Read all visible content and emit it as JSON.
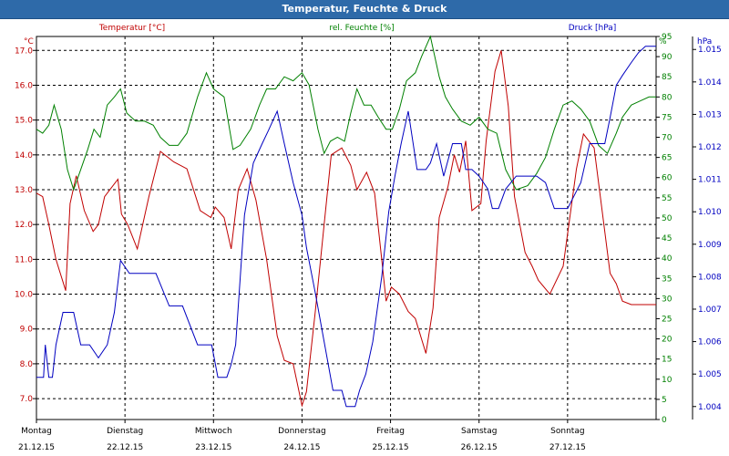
{
  "window": {
    "title": "Temperatur, Feuchte & Druck"
  },
  "chart_data": {
    "type": "line",
    "title": "Temperatur, Feuchte & Druck",
    "x_days": [
      {
        "day": "Montag",
        "date": "21.12.15"
      },
      {
        "day": "Dienstag",
        "date": "22.12.15"
      },
      {
        "day": "Mittwoch",
        "date": "23.12.15"
      },
      {
        "day": "Donnerstag",
        "date": "24.12.15"
      },
      {
        "day": "Freitag",
        "date": "25.12.15"
      },
      {
        "day": "Samstag",
        "date": "26.12.15"
      },
      {
        "day": "Sonntag",
        "date": "27.12.15"
      }
    ],
    "axes": {
      "temperature": {
        "label": "Temperatur [°C]",
        "unit": "°C",
        "min": 6.4,
        "max": 17.4,
        "ticks": [
          "7.0",
          "8.0",
          "9.0",
          "10.0",
          "11.0",
          "12.0",
          "13.0",
          "14.0",
          "15.0",
          "16.0",
          "17.0"
        ],
        "color": "#c00000"
      },
      "humidity": {
        "label": "rel. Feuchte [%]",
        "unit": "%",
        "min": 0,
        "max": 95,
        "ticks": [
          "0",
          "5",
          "10",
          "15",
          "20",
          "25",
          "30",
          "35",
          "40",
          "45",
          "50",
          "55",
          "60",
          "65",
          "70",
          "75",
          "80",
          "85",
          "90",
          "95"
        ],
        "color": "#008000"
      },
      "pressure": {
        "label": "Druck [hPa]",
        "unit": "hPa",
        "min": 1003.6,
        "max": 1015.4,
        "ticks": [
          "1.004",
          "1.005",
          "1.006",
          "1.007",
          "1.008",
          "1.009",
          "1.010",
          "1.011",
          "1.012",
          "1.013",
          "1.014",
          "1.015"
        ],
        "color": "#0000c0"
      }
    },
    "grid": true,
    "series": [
      {
        "name": "Temperatur [°C]",
        "color": "#c00000",
        "axis": "temperature",
        "x": [
          0,
          0.07,
          0.14,
          0.22,
          0.33,
          0.38,
          0.45,
          0.54,
          0.64,
          0.7,
          0.77,
          0.92,
          0.96,
          1.03,
          1.14,
          1.27,
          1.4,
          1.55,
          1.7,
          1.85,
          1.97,
          2.02,
          2.12,
          2.2,
          2.28,
          2.38,
          2.48,
          2.6,
          2.72,
          2.8,
          2.9,
          3.0,
          3.05,
          3.15,
          3.25,
          3.33,
          3.45,
          3.55,
          3.62,
          3.73,
          3.82,
          3.9,
          3.95,
          4.01,
          4.1,
          4.2,
          4.28,
          4.4,
          4.48,
          4.55,
          4.65,
          4.72,
          4.78,
          4.85,
          4.92,
          5.02,
          5.08,
          5.18,
          5.25,
          5.33,
          5.4,
          5.52,
          5.6,
          5.67,
          5.8,
          5.95,
          6.1,
          6.18,
          6.3,
          6.48,
          6.55,
          6.62,
          6.72,
          6.82,
          6.97,
          7.0
        ],
        "y": [
          12.9,
          12.8,
          12.0,
          11.0,
          10.1,
          12.6,
          13.4,
          12.4,
          11.8,
          12.0,
          12.8,
          13.3,
          12.3,
          12.0,
          11.3,
          12.8,
          14.1,
          13.8,
          13.6,
          12.4,
          12.2,
          12.5,
          12.2,
          11.3,
          13.0,
          13.6,
          12.7,
          11.0,
          8.8,
          8.1,
          8.0,
          6.8,
          7.2,
          9.5,
          12.0,
          14.0,
          14.2,
          13.7,
          13.0,
          13.5,
          12.9,
          11.0,
          9.8,
          10.2,
          10.0,
          9.5,
          9.3,
          8.3,
          9.6,
          12.2,
          13.1,
          14.0,
          13.5,
          14.4,
          12.4,
          12.6,
          14.4,
          16.4,
          17.0,
          15.4,
          12.8,
          11.2,
          10.8,
          10.4,
          10.0,
          10.8,
          13.6,
          14.6,
          14.2,
          10.6,
          10.3,
          9.8,
          9.7,
          9.7,
          9.7,
          9.7
        ]
      },
      {
        "name": "rel. Feuchte [%]",
        "color": "#008000",
        "axis": "humidity",
        "x": [
          0,
          0.07,
          0.14,
          0.2,
          0.28,
          0.35,
          0.42,
          0.5,
          0.58,
          0.65,
          0.72,
          0.8,
          0.88,
          0.95,
          1.02,
          1.12,
          1.22,
          1.32,
          1.4,
          1.5,
          1.6,
          1.7,
          1.82,
          1.92,
          2.0,
          2.12,
          2.22,
          2.3,
          2.42,
          2.52,
          2.6,
          2.7,
          2.8,
          2.9,
          3.0,
          3.08,
          3.18,
          3.25,
          3.32,
          3.4,
          3.48,
          3.55,
          3.62,
          3.7,
          3.78,
          3.86,
          3.95,
          4.02,
          4.1,
          4.18,
          4.28,
          4.35,
          4.45,
          4.55,
          4.62,
          4.7,
          4.8,
          4.9,
          5.0,
          5.1,
          5.2,
          5.3,
          5.42,
          5.55,
          5.65,
          5.75,
          5.85,
          5.95,
          6.05,
          6.15,
          6.25,
          6.35,
          6.45,
          6.55,
          6.62,
          6.72,
          6.82,
          6.92,
          7.0
        ],
        "y": [
          72,
          71,
          73,
          78,
          72,
          62,
          57,
          62,
          67,
          72,
          70,
          78,
          80,
          82,
          76,
          74,
          74,
          73,
          70,
          68,
          68,
          71,
          80,
          86,
          82,
          80,
          67,
          68,
          72,
          78,
          82,
          82,
          85,
          84,
          86,
          83,
          72,
          66,
          69,
          70,
          69,
          76,
          82,
          78,
          78,
          75,
          72,
          72,
          77,
          84,
          86,
          90,
          95,
          85,
          80,
          77,
          74,
          73,
          75,
          72,
          71,
          62,
          57,
          58,
          61,
          65,
          72,
          78,
          79,
          77,
          74,
          68,
          66,
          71,
          75,
          78,
          79,
          80,
          80
        ]
      },
      {
        "name": "Druck [hPa]",
        "color": "#0000c0",
        "axis": "pressure",
        "x": [
          0,
          0.08,
          0.1,
          0.14,
          0.18,
          0.22,
          0.3,
          0.42,
          0.5,
          0.6,
          0.7,
          0.8,
          0.88,
          0.95,
          1.05,
          1.15,
          1.25,
          1.35,
          1.5,
          1.65,
          1.82,
          1.9,
          1.98,
          2.05,
          2.15,
          2.2,
          2.25,
          2.35,
          2.45,
          2.55,
          2.62,
          2.72,
          2.8,
          2.9,
          3.0,
          3.05,
          3.15,
          3.25,
          3.35,
          3.45,
          3.5,
          3.6,
          3.65,
          3.72,
          3.8,
          3.9,
          3.98,
          4.05,
          4.12,
          4.2,
          4.3,
          4.4,
          4.45,
          4.52,
          4.6,
          4.7,
          4.8,
          4.85,
          4.92,
          5.0,
          5.1,
          5.15,
          5.22,
          5.3,
          5.42,
          5.55,
          5.65,
          5.75,
          5.85,
          6.0,
          6.15,
          6.25,
          6.32,
          6.38,
          6.42,
          6.48,
          6.55,
          6.62,
          6.72,
          6.8,
          6.88,
          6.93,
          7.0
        ],
        "y": [
          1004.9,
          1004.9,
          1005.9,
          1004.9,
          1004.9,
          1005.9,
          1006.9,
          1006.9,
          1005.9,
          1005.9,
          1005.5,
          1005.9,
          1006.9,
          1008.5,
          1008.1,
          1008.1,
          1008.1,
          1008.1,
          1007.1,
          1007.1,
          1005.9,
          1005.9,
          1005.9,
          1004.9,
          1004.9,
          1005.3,
          1005.9,
          1009.9,
          1011.5,
          1012.1,
          1012.5,
          1013.1,
          1012.1,
          1010.9,
          1009.9,
          1008.9,
          1007.5,
          1006.0,
          1004.5,
          1004.5,
          1004.0,
          1004.0,
          1004.5,
          1005.0,
          1006.0,
          1008.0,
          1010.0,
          1011.1,
          1012.1,
          1013.1,
          1011.3,
          1011.3,
          1011.5,
          1012.1,
          1011.1,
          1012.1,
          1012.1,
          1011.3,
          1011.3,
          1011.1,
          1010.7,
          1010.1,
          1010.1,
          1010.7,
          1011.1,
          1011.1,
          1011.1,
          1010.9,
          1010.1,
          1010.1,
          1010.9,
          1012.1,
          1012.1,
          1012.1,
          1012.1,
          1012.9,
          1013.9,
          1014.2,
          1014.6,
          1014.9,
          1015.1,
          1015.1,
          1015.1
        ]
      }
    ]
  }
}
